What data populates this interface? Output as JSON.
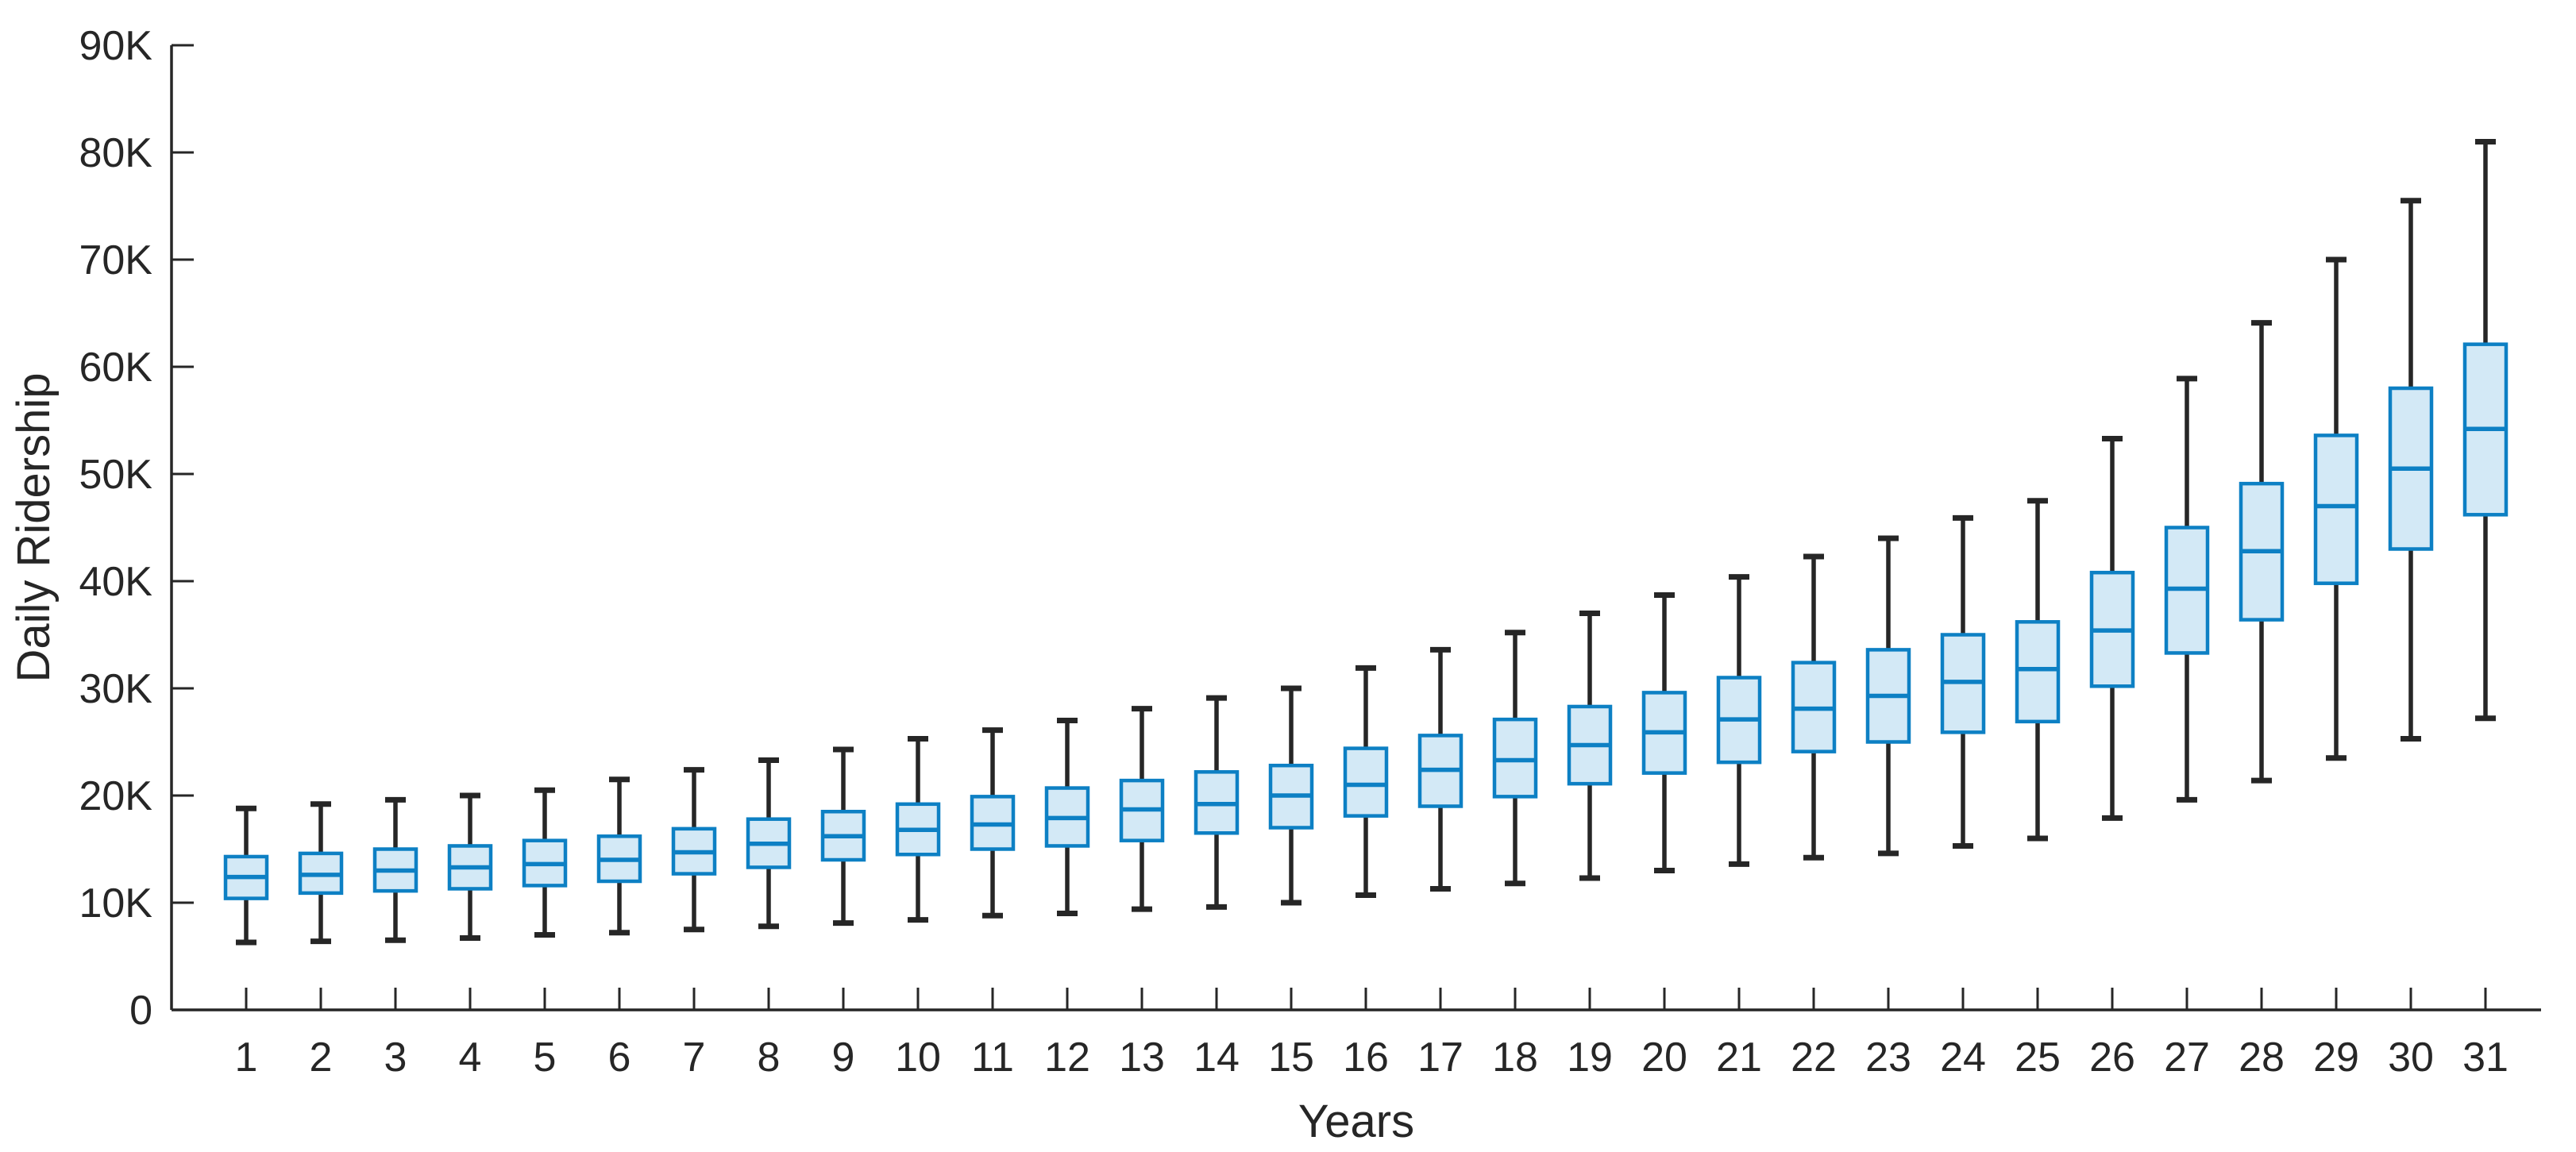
{
  "figure": {
    "ylabel": "Daily Ridership",
    "xlabel": "Years",
    "y_tick_labels": [
      "0",
      "10K",
      "20K",
      "30K",
      "40K",
      "50K",
      "60K",
      "70K",
      "80K",
      "90K"
    ],
    "x_tick_labels": [
      "1",
      "2",
      "3",
      "4",
      "5",
      "6",
      "7",
      "8",
      "9",
      "10",
      "11",
      "12",
      "13",
      "14",
      "15",
      "16",
      "17",
      "18",
      "19",
      "20",
      "21",
      "22",
      "23",
      "24",
      "25",
      "26",
      "27",
      "28",
      "29",
      "30",
      "31"
    ]
  },
  "style": {
    "background": "#ffffff",
    "axis_color": "#262626",
    "text_color": "#262626",
    "box_edge_color": "#0d80c4",
    "box_fill_color": "#d3e9f6",
    "median_color": "#0d80c4",
    "whisker_color": "#262626"
  },
  "chart_data": {
    "type": "boxplot",
    "title": "",
    "xlabel": "Years",
    "ylabel": "Daily Ridership",
    "ylim": [
      0,
      90000
    ],
    "y_tick_step": 10000,
    "grid": false,
    "legend": false,
    "categories": [
      1,
      2,
      3,
      4,
      5,
      6,
      7,
      8,
      9,
      10,
      11,
      12,
      13,
      14,
      15,
      16,
      17,
      18,
      19,
      20,
      21,
      22,
      23,
      24,
      25,
      26,
      27,
      28,
      29,
      30,
      31
    ],
    "series": [
      {
        "name": "Daily Ridership",
        "boxes": [
          {
            "year": 1,
            "whisker_low": 6300,
            "q1": 10400,
            "median": 12400,
            "q3": 14300,
            "whisker_high": 18800
          },
          {
            "year": 2,
            "whisker_low": 6400,
            "q1": 10900,
            "median": 12600,
            "q3": 14600,
            "whisker_high": 19200
          },
          {
            "year": 3,
            "whisker_low": 6500,
            "q1": 11100,
            "median": 13000,
            "q3": 15000,
            "whisker_high": 19600
          },
          {
            "year": 4,
            "whisker_low": 6700,
            "q1": 11300,
            "median": 13300,
            "q3": 15300,
            "whisker_high": 20000
          },
          {
            "year": 5,
            "whisker_low": 7000,
            "q1": 11600,
            "median": 13600,
            "q3": 15800,
            "whisker_high": 20500
          },
          {
            "year": 6,
            "whisker_low": 7200,
            "q1": 12000,
            "median": 14000,
            "q3": 16200,
            "whisker_high": 21500
          },
          {
            "year": 7,
            "whisker_low": 7500,
            "q1": 12700,
            "median": 14700,
            "q3": 16900,
            "whisker_high": 22400
          },
          {
            "year": 8,
            "whisker_low": 7800,
            "q1": 13300,
            "median": 15500,
            "q3": 17800,
            "whisker_high": 23300
          },
          {
            "year": 9,
            "whisker_low": 8100,
            "q1": 14000,
            "median": 16200,
            "q3": 18500,
            "whisker_high": 24300
          },
          {
            "year": 10,
            "whisker_low": 8400,
            "q1": 14500,
            "median": 16800,
            "q3": 19200,
            "whisker_high": 25300
          },
          {
            "year": 11,
            "whisker_low": 8800,
            "q1": 15000,
            "median": 17300,
            "q3": 19900,
            "whisker_high": 26100
          },
          {
            "year": 12,
            "whisker_low": 9000,
            "q1": 15300,
            "median": 17900,
            "q3": 20700,
            "whisker_high": 27000
          },
          {
            "year": 13,
            "whisker_low": 9400,
            "q1": 15800,
            "median": 18700,
            "q3": 21400,
            "whisker_high": 28100
          },
          {
            "year": 14,
            "whisker_low": 9600,
            "q1": 16500,
            "median": 19200,
            "q3": 22200,
            "whisker_high": 29100
          },
          {
            "year": 15,
            "whisker_low": 10000,
            "q1": 17000,
            "median": 20000,
            "q3": 22800,
            "whisker_high": 30000
          },
          {
            "year": 16,
            "whisker_low": 10700,
            "q1": 18100,
            "median": 21000,
            "q3": 24400,
            "whisker_high": 31900
          },
          {
            "year": 17,
            "whisker_low": 11300,
            "q1": 19000,
            "median": 22400,
            "q3": 25600,
            "whisker_high": 33600
          },
          {
            "year": 18,
            "whisker_low": 11800,
            "q1": 19900,
            "median": 23300,
            "q3": 27100,
            "whisker_high": 35200
          },
          {
            "year": 19,
            "whisker_low": 12300,
            "q1": 21100,
            "median": 24700,
            "q3": 28300,
            "whisker_high": 37000
          },
          {
            "year": 20,
            "whisker_low": 13000,
            "q1": 22100,
            "median": 25900,
            "q3": 29600,
            "whisker_high": 38700
          },
          {
            "year": 21,
            "whisker_low": 13600,
            "q1": 23100,
            "median": 27100,
            "q3": 31000,
            "whisker_high": 40400
          },
          {
            "year": 22,
            "whisker_low": 14200,
            "q1": 24100,
            "median": 28100,
            "q3": 32400,
            "whisker_high": 42300
          },
          {
            "year": 23,
            "whisker_low": 14600,
            "q1": 25000,
            "median": 29300,
            "q3": 33600,
            "whisker_high": 44000
          },
          {
            "year": 24,
            "whisker_low": 15300,
            "q1": 25900,
            "median": 30600,
            "q3": 35000,
            "whisker_high": 45900
          },
          {
            "year": 25,
            "whisker_low": 16000,
            "q1": 26900,
            "median": 31800,
            "q3": 36200,
            "whisker_high": 47500
          },
          {
            "year": 26,
            "whisker_low": 17900,
            "q1": 30200,
            "median": 35400,
            "q3": 40800,
            "whisker_high": 53300
          },
          {
            "year": 27,
            "whisker_low": 19600,
            "q1": 33300,
            "median": 39300,
            "q3": 45000,
            "whisker_high": 58900
          },
          {
            "year": 28,
            "whisker_low": 21400,
            "q1": 36400,
            "median": 42800,
            "q3": 49100,
            "whisker_high": 64100
          },
          {
            "year": 29,
            "whisker_low": 23500,
            "q1": 39800,
            "median": 47000,
            "q3": 53600,
            "whisker_high": 70000
          },
          {
            "year": 30,
            "whisker_low": 25300,
            "q1": 43000,
            "median": 50500,
            "q3": 58000,
            "whisker_high": 75500
          },
          {
            "year": 31,
            "whisker_low": 27200,
            "q1": 46200,
            "median": 54200,
            "q3": 62100,
            "whisker_high": 81000
          }
        ]
      }
    ]
  }
}
